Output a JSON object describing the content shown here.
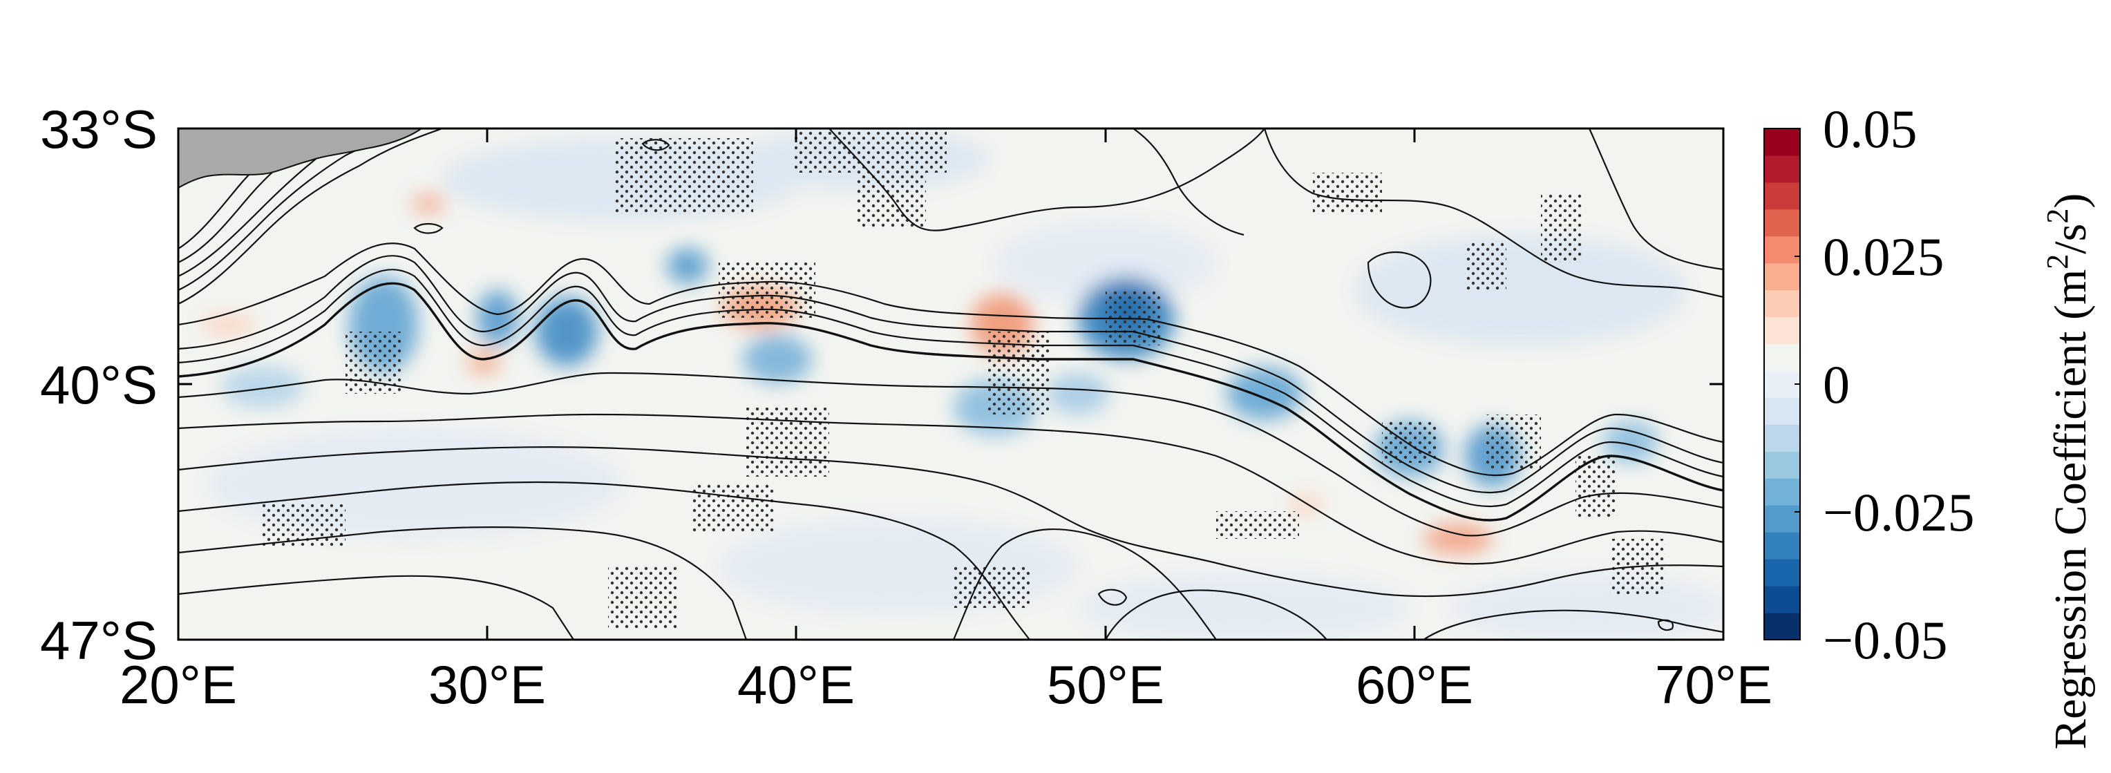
{
  "chart_data": {
    "type": "contour_map",
    "x_ticks": [
      "20°E",
      "30°E",
      "40°E",
      "50°E",
      "60°E",
      "70°E"
    ],
    "y_ticks": [
      "33°S",
      "40°S",
      "47°S"
    ],
    "xlim": [
      20,
      70
    ],
    "ylim": [
      -47,
      -33
    ],
    "colorbar": {
      "title_prefix": "Regression Coefficient (m",
      "title_sup1": "2",
      "title_mid": "/s",
      "title_sup2": "2",
      "title_suffix": ")",
      "tick_labels": [
        "0.05",
        "0.025",
        "0",
        "−0.025",
        "−0.05"
      ],
      "tick_values": [
        0.05,
        0.025,
        0,
        -0.025,
        -0.05
      ],
      "range": [
        -0.05,
        0.05
      ],
      "colors": [
        "#08306b",
        "#0b4d94",
        "#1966ad",
        "#3282be",
        "#519ccc",
        "#73b2d8",
        "#9ac8e0",
        "#bcd7eb",
        "#d7e6f2",
        "#e8eff6",
        "#f2f4f0",
        "#fbe3d6",
        "#fcccb4",
        "#fbad8f",
        "#f48b6e",
        "#e0634f",
        "#cb3b3a",
        "#b31a2c",
        "#99001e"
      ]
    },
    "land_color": "#a9a9a9",
    "stippling": "significant regions",
    "contours": "mean sea surface height (unlabeled)"
  }
}
